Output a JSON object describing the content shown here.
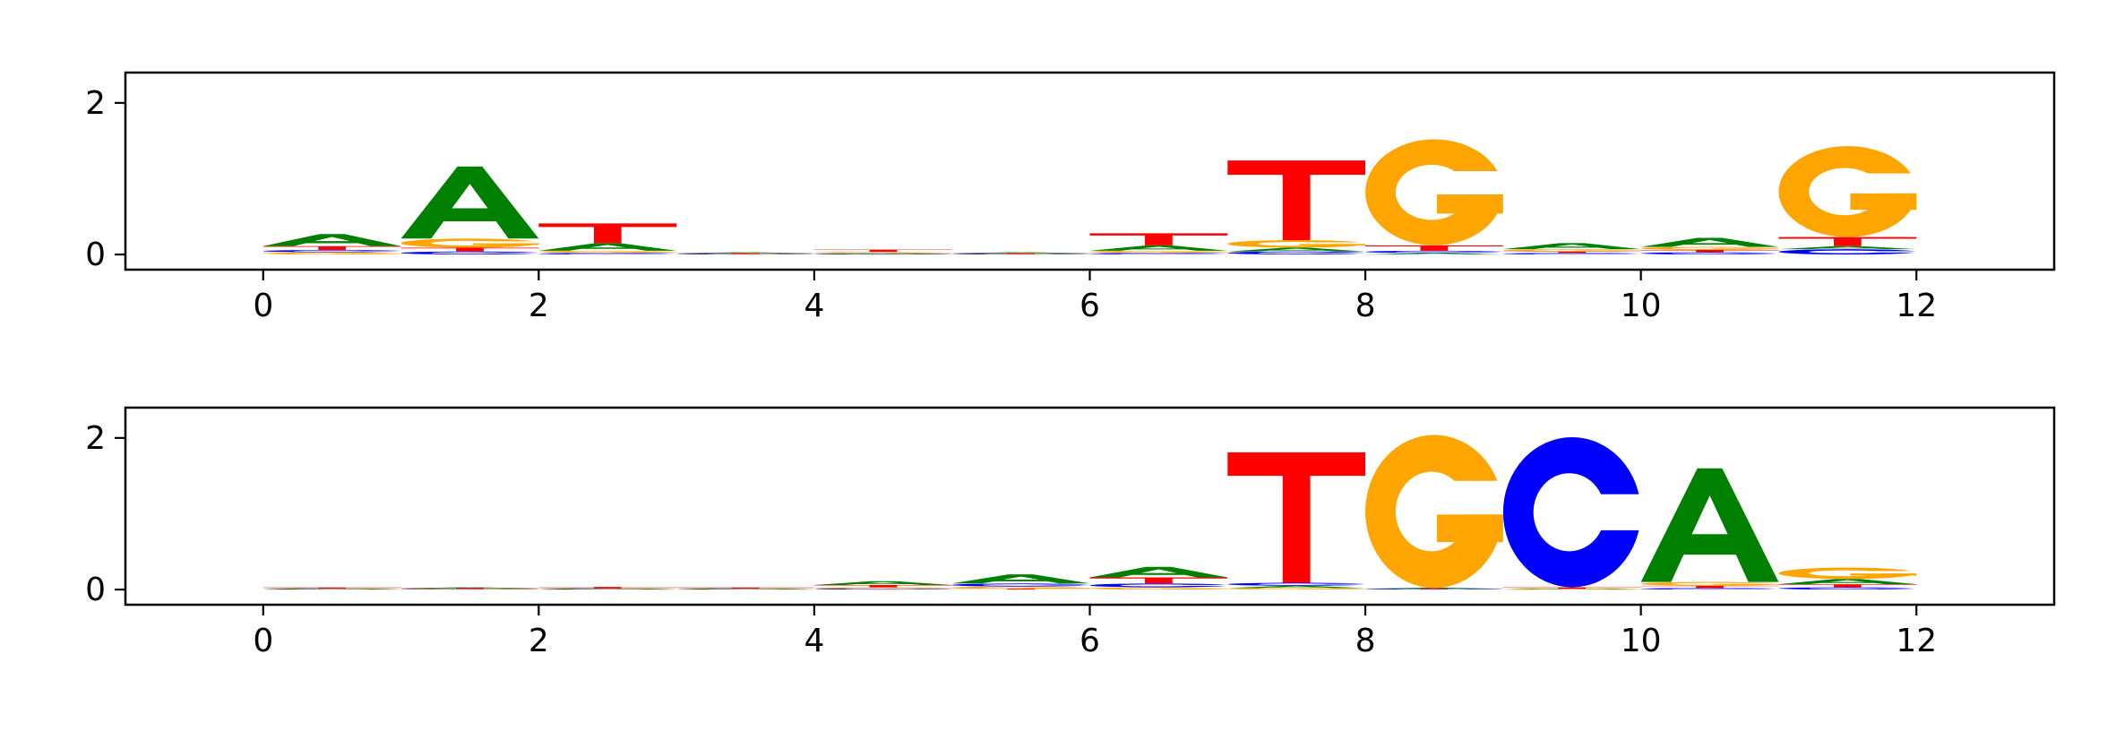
{
  "chart_data": [
    {
      "type": "sequence-logo",
      "xlim": [
        -1,
        13
      ],
      "ylim": [
        -0.2,
        2.4
      ],
      "xticks": [
        0,
        2,
        4,
        6,
        8,
        10,
        12
      ],
      "yticks": [
        0,
        2
      ],
      "xtick_labels": [
        "0",
        "2",
        "4",
        "6",
        "8",
        "10",
        "12"
      ],
      "ytick_labels": [
        "0",
        "2"
      ],
      "colors": {
        "A": "#008000",
        "C": "#0000ff",
        "G": "#ffa500",
        "T": "#ff0000"
      },
      "positions": [
        {
          "x": 0.5,
          "letters": [
            {
              "base": "G",
              "h": 0.03
            },
            {
              "base": "C",
              "h": 0.03
            },
            {
              "base": "T",
              "h": 0.05
            },
            {
              "base": "A",
              "h": 0.16
            }
          ]
        },
        {
          "x": 1.5,
          "letters": [
            {
              "base": "C",
              "h": 0.04
            },
            {
              "base": "T",
              "h": 0.05
            },
            {
              "base": "G",
              "h": 0.12
            },
            {
              "base": "A",
              "h": 0.95
            }
          ]
        },
        {
          "x": 2.5,
          "letters": [
            {
              "base": "C",
              "h": 0.02
            },
            {
              "base": "G",
              "h": 0.03
            },
            {
              "base": "A",
              "h": 0.1
            },
            {
              "base": "T",
              "h": 0.26
            }
          ]
        },
        {
          "x": 3.5,
          "letters": [
            {
              "base": "C",
              "h": 0.005
            },
            {
              "base": "T",
              "h": 0.005
            },
            {
              "base": "G",
              "h": 0.005
            },
            {
              "base": "A",
              "h": 0.01
            }
          ]
        },
        {
          "x": 4.5,
          "letters": [
            {
              "base": "C",
              "h": 0.005
            },
            {
              "base": "A",
              "h": 0.01
            },
            {
              "base": "G",
              "h": 0.02
            },
            {
              "base": "T",
              "h": 0.03
            }
          ]
        },
        {
          "x": 5.5,
          "letters": [
            {
              "base": "C",
              "h": 0.005
            },
            {
              "base": "T",
              "h": 0.005
            },
            {
              "base": "G",
              "h": 0.005
            },
            {
              "base": "A",
              "h": 0.01
            }
          ]
        },
        {
          "x": 6.5,
          "letters": [
            {
              "base": "C",
              "h": 0.02
            },
            {
              "base": "G",
              "h": 0.03
            },
            {
              "base": "A",
              "h": 0.07
            },
            {
              "base": "T",
              "h": 0.16
            }
          ]
        },
        {
          "x": 7.5,
          "letters": [
            {
              "base": "C",
              "h": 0.04
            },
            {
              "base": "A",
              "h": 0.05
            },
            {
              "base": "G",
              "h": 0.1
            },
            {
              "base": "T",
              "h": 1.05
            }
          ]
        },
        {
          "x": 8.5,
          "letters": [
            {
              "base": "A",
              "h": 0.02
            },
            {
              "base": "C",
              "h": 0.03
            },
            {
              "base": "T",
              "h": 0.07
            },
            {
              "base": "G",
              "h": 1.4
            }
          ]
        },
        {
          "x": 9.5,
          "letters": [
            {
              "base": "C",
              "h": 0.02
            },
            {
              "base": "T",
              "h": 0.02
            },
            {
              "base": "G",
              "h": 0.03
            },
            {
              "base": "A",
              "h": 0.08
            }
          ]
        },
        {
          "x": 10.5,
          "letters": [
            {
              "base": "C",
              "h": 0.03
            },
            {
              "base": "T",
              "h": 0.03
            },
            {
              "base": "G",
              "h": 0.04
            },
            {
              "base": "A",
              "h": 0.12
            }
          ]
        },
        {
          "x": 11.5,
          "letters": [
            {
              "base": "C",
              "h": 0.07
            },
            {
              "base": "A",
              "h": 0.04
            },
            {
              "base": "T",
              "h": 0.12
            },
            {
              "base": "G",
              "h": 1.2
            }
          ]
        }
      ]
    },
    {
      "type": "sequence-logo",
      "xlim": [
        -1,
        13
      ],
      "ylim": [
        -0.2,
        2.4
      ],
      "xticks": [
        0,
        2,
        4,
        6,
        8,
        10,
        12
      ],
      "yticks": [
        0,
        2
      ],
      "xtick_labels": [
        "0",
        "2",
        "4",
        "6",
        "8",
        "10",
        "12"
      ],
      "ytick_labels": [
        "0",
        "2"
      ],
      "colors": {
        "A": "#008000",
        "C": "#0000ff",
        "G": "#ffa500",
        "T": "#ff0000"
      },
      "positions": [
        {
          "x": 0.5,
          "letters": [
            {
              "base": "A",
              "h": 0.005
            },
            {
              "base": "C",
              "h": 0.005
            },
            {
              "base": "G",
              "h": 0.005
            },
            {
              "base": "T",
              "h": 0.01
            }
          ]
        },
        {
          "x": 1.5,
          "letters": [
            {
              "base": "C",
              "h": 0.005
            },
            {
              "base": "G",
              "h": 0.005
            },
            {
              "base": "T",
              "h": 0.005
            },
            {
              "base": "A",
              "h": 0.01
            }
          ]
        },
        {
          "x": 2.5,
          "letters": [
            {
              "base": "A",
              "h": 0.005
            },
            {
              "base": "C",
              "h": 0.005
            },
            {
              "base": "G",
              "h": 0.005
            },
            {
              "base": "T",
              "h": 0.02
            }
          ]
        },
        {
          "x": 3.5,
          "letters": [
            {
              "base": "A",
              "h": 0.005
            },
            {
              "base": "C",
              "h": 0.005
            },
            {
              "base": "G",
              "h": 0.005
            },
            {
              "base": "T",
              "h": 0.01
            }
          ]
        },
        {
          "x": 4.5,
          "letters": [
            {
              "base": "C",
              "h": 0.01
            },
            {
              "base": "G",
              "h": 0.02
            },
            {
              "base": "T",
              "h": 0.03
            },
            {
              "base": "A",
              "h": 0.05
            }
          ]
        },
        {
          "x": 5.5,
          "letters": [
            {
              "base": "T",
              "h": 0.01
            },
            {
              "base": "G",
              "h": 0.03
            },
            {
              "base": "C",
              "h": 0.04
            },
            {
              "base": "A",
              "h": 0.12
            }
          ]
        },
        {
          "x": 6.5,
          "letters": [
            {
              "base": "G",
              "h": 0.03
            },
            {
              "base": "C",
              "h": 0.05
            },
            {
              "base": "T",
              "h": 0.08
            },
            {
              "base": "A",
              "h": 0.14
            }
          ]
        },
        {
          "x": 7.5,
          "letters": [
            {
              "base": "G",
              "h": 0.02
            },
            {
              "base": "A",
              "h": 0.03
            },
            {
              "base": "C",
              "h": 0.04
            },
            {
              "base": "T",
              "h": 1.72
            }
          ]
        },
        {
          "x": 8.5,
          "letters": [
            {
              "base": "C",
              "h": 0.005
            },
            {
              "base": "T",
              "h": 0.005
            },
            {
              "base": "A",
              "h": 0.01
            },
            {
              "base": "G",
              "h": 2.02
            }
          ]
        },
        {
          "x": 9.5,
          "letters": [
            {
              "base": "A",
              "h": 0.005
            },
            {
              "base": "G",
              "h": 0.005
            },
            {
              "base": "T",
              "h": 0.02
            },
            {
              "base": "C",
              "h": 1.98
            }
          ]
        },
        {
          "x": 10.5,
          "letters": [
            {
              "base": "C",
              "h": 0.02
            },
            {
              "base": "T",
              "h": 0.03
            },
            {
              "base": "G",
              "h": 0.05
            },
            {
              "base": "A",
              "h": 1.5
            }
          ]
        },
        {
          "x": 11.5,
          "letters": [
            {
              "base": "C",
              "h": 0.03
            },
            {
              "base": "T",
              "h": 0.04
            },
            {
              "base": "A",
              "h": 0.07
            },
            {
              "base": "G",
              "h": 0.15
            }
          ]
        }
      ]
    }
  ]
}
